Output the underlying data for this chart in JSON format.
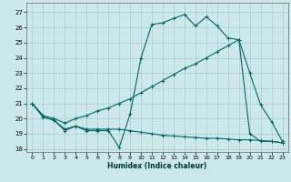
{
  "xlabel": "Humidex (Indice chaleur)",
  "bg_color": "#cce8ea",
  "grid_color": "#aacccc",
  "line_color": "#006666",
  "xlim": [
    -0.5,
    23.5
  ],
  "ylim": [
    17.8,
    27.6
  ],
  "xticks": [
    0,
    1,
    2,
    3,
    4,
    5,
    6,
    7,
    8,
    9,
    10,
    11,
    12,
    13,
    14,
    15,
    16,
    17,
    18,
    19,
    20,
    21,
    22,
    23
  ],
  "yticks": [
    18,
    19,
    20,
    21,
    22,
    23,
    24,
    25,
    26,
    27
  ],
  "curve1_x": [
    0,
    1,
    2,
    3,
    4,
    5,
    6,
    7,
    8,
    9,
    10,
    11,
    12,
    13,
    14,
    15,
    16,
    17,
    18,
    19,
    20,
    21,
    22,
    23
  ],
  "curve1_y": [
    21.0,
    20.1,
    19.9,
    19.2,
    19.5,
    19.2,
    19.2,
    19.2,
    18.1,
    20.3,
    24.0,
    26.2,
    26.3,
    26.6,
    26.85,
    26.1,
    26.7,
    26.1,
    25.3,
    25.2,
    19.0,
    18.5,
    18.5,
    18.4
  ],
  "curve2_x": [
    0,
    1,
    2,
    3,
    4,
    5,
    6,
    7,
    8,
    9,
    10,
    11,
    12,
    13,
    14,
    15,
    16,
    17,
    18,
    19,
    20,
    21,
    22,
    23
  ],
  "curve2_y": [
    21.0,
    20.2,
    20.0,
    19.7,
    20.0,
    20.2,
    20.5,
    20.7,
    21.0,
    21.3,
    21.7,
    22.1,
    22.5,
    22.9,
    23.3,
    23.6,
    24.0,
    24.4,
    24.8,
    25.2,
    23.0,
    20.9,
    19.8,
    18.5
  ],
  "curve3_x": [
    0,
    1,
    2,
    3,
    4,
    5,
    6,
    7,
    8,
    9,
    10,
    11,
    12,
    13,
    14,
    15,
    16,
    17,
    18,
    19,
    20,
    21,
    22,
    23
  ],
  "curve3_y": [
    21.0,
    20.1,
    19.9,
    19.3,
    19.5,
    19.3,
    19.3,
    19.3,
    19.3,
    19.2,
    19.1,
    19.0,
    18.9,
    18.85,
    18.8,
    18.75,
    18.7,
    18.7,
    18.65,
    18.6,
    18.6,
    18.55,
    18.5,
    18.4
  ]
}
